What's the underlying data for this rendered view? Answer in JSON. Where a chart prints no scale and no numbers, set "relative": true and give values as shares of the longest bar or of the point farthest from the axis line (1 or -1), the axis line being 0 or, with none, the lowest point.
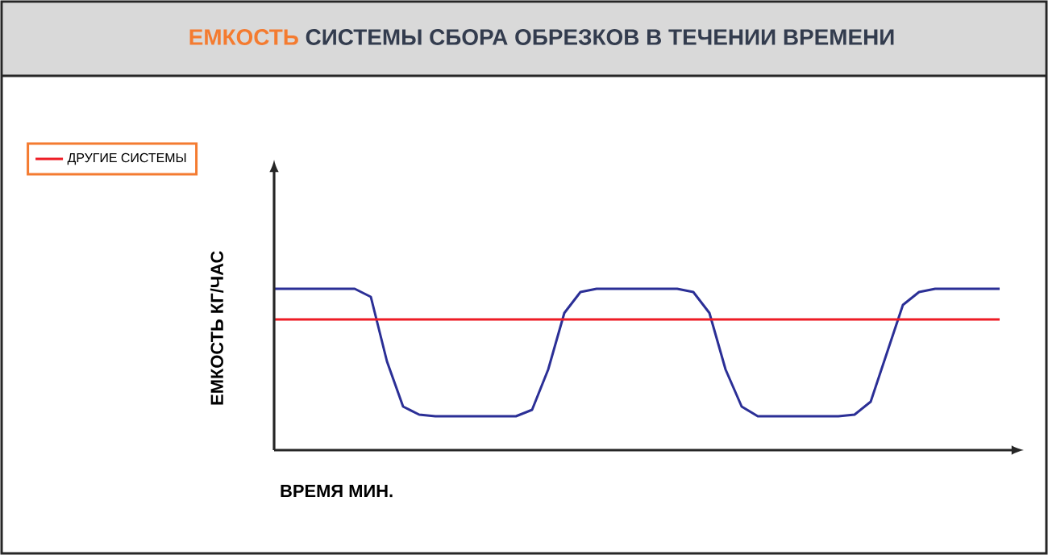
{
  "chart_data": {
    "type": "line",
    "title": "**ЕМКОСТЬ** СИСТЕМЫ СБОРА ОБРЕЗКОВ В ТЕЧЕНИИ ВРЕМЕНИ",
    "xlabel": "ВРЕМЯ МИН.",
    "ylabel": "ЕМКОСТЬ КГ/ЧАС",
    "relative": true,
    "legend": "top left",
    "categories": [
      null,
      null,
      null,
      null,
      null,
      null,
      null,
      null,
      null,
      null,
      null,
      null,
      null,
      null,
      null,
      null,
      null,
      null,
      null,
      null,
      null,
      null,
      null,
      null,
      null,
      null,
      null,
      null,
      null,
      null,
      null,
      null,
      null,
      null,
      null,
      null,
      null,
      null,
      null,
      null,
      null,
      null,
      null,
      null,
      null,
      null
    ],
    "series": [
      {
        "color": "#2b2f96",
        "values": [
          1,
          1,
          1,
          1,
          1,
          1,
          0.95,
          0.55,
          0.27,
          0.22,
          0.21,
          0.21,
          0.21,
          0.21,
          0.21,
          0.21,
          0.25,
          0.5,
          0.85,
          0.98,
          1,
          1,
          1,
          1,
          1,
          1,
          0.98,
          0.85,
          0.5,
          0.27,
          0.21,
          0.21,
          0.21,
          0.21,
          0.21,
          0.21,
          0.22,
          0.3,
          0.6,
          0.9,
          0.98,
          1,
          1,
          1,
          1,
          1
        ]
      },
      {
        "name": "ДРУГИЕ СИСТЕМЫ",
        "color": "#ee1c25",
        "values": [
          0.81,
          0.81,
          0.81,
          0.81,
          0.81,
          0.81,
          0.81,
          0.81,
          0.81,
          0.81,
          0.81,
          0.81,
          0.81,
          0.81,
          0.81,
          0.81,
          0.81,
          0.81,
          0.81,
          0.81,
          0.81,
          0.81,
          0.81,
          0.81,
          0.81,
          0.81,
          0.81,
          0.81,
          0.81,
          0.81,
          0.81,
          0.81,
          0.81,
          0.81,
          0.81,
          0.81,
          0.81,
          0.81,
          0.81,
          0.81,
          0.81,
          0.81,
          0.81,
          0.81,
          0.81,
          0.81
        ]
      }
    ]
  }
}
